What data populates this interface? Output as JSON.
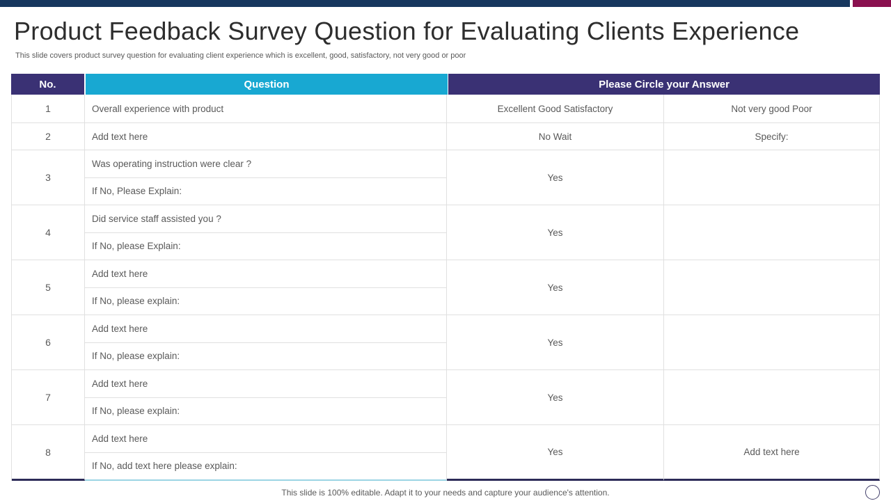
{
  "header": {
    "title": "Product Feedback Survey Question for Evaluating Clients Experience",
    "subtitle": "This slide covers product survey question for evaluating client experience which is excellent, good, satisfactory, not very good or poor"
  },
  "table": {
    "columns": {
      "no": "No.",
      "question": "Question",
      "answer": "Please Circle your Answer"
    },
    "rows": [
      {
        "no": "1",
        "questions": [
          "Overall experience with product"
        ],
        "answer1": "Excellent Good Satisfactory",
        "answer2": "Not very good Poor"
      },
      {
        "no": "2",
        "questions": [
          "Add text here"
        ],
        "answer1": "No Wait",
        "answer2": "Specify:"
      },
      {
        "no": "3",
        "questions": [
          "Was operating instruction were clear ?",
          "If No, Please Explain:"
        ],
        "answer1": "Yes",
        "answer2": ""
      },
      {
        "no": "4",
        "questions": [
          "Did service staff assisted you ?",
          "If No, please Explain:"
        ],
        "answer1": "Yes",
        "answer2": ""
      },
      {
        "no": "5",
        "questions": [
          "Add text here",
          "If No, please explain:"
        ],
        "answer1": "Yes",
        "answer2": ""
      },
      {
        "no": "6",
        "questions": [
          "Add text here",
          "If No, please explain:"
        ],
        "answer1": "Yes",
        "answer2": ""
      },
      {
        "no": "7",
        "questions": [
          "Add text here",
          "If No, please explain:"
        ],
        "answer1": "Yes",
        "answer2": ""
      },
      {
        "no": "8",
        "questions": [
          "Add text here",
          "If No, add text here please explain:"
        ],
        "answer1": "Yes",
        "answer2": "Add text here"
      }
    ]
  },
  "footer": {
    "note": "This slide is 100% editable. Adapt it to your needs and capture your audience's attention."
  },
  "colors": {
    "top_bar_navy": "#17375e",
    "top_bar_magenta": "#8a104f",
    "header_purple": "#3a3174",
    "header_cyan": "#18a8d2",
    "bottom_border_dark": "#2d2b58",
    "bottom_border_cyan": "#9bd4e4",
    "body_text": "#595959"
  },
  "icons": {
    "circle_decoration": "circle-outline-icon"
  }
}
